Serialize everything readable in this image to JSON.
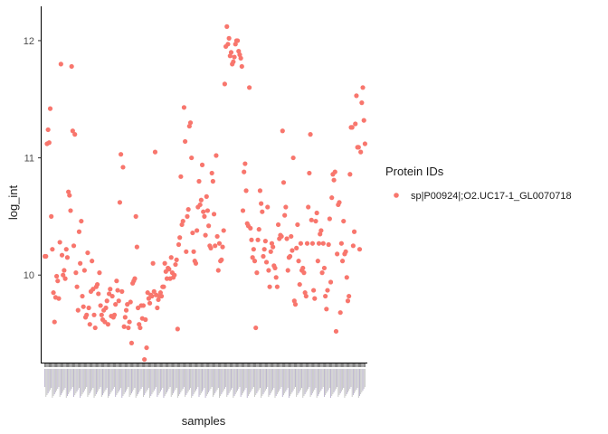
{
  "chart_data": {
    "type": "scatter",
    "xlabel": "samples",
    "ylabel": "log_int",
    "ylim": [
      9.4,
      12.15
    ],
    "yticks": [
      10,
      11,
      12
    ],
    "grid": false,
    "legend": {
      "title": "Protein IDs",
      "placement": "right"
    },
    "series": [
      {
        "name": "sp|P00924|;O2.UC17-1_GL0070718",
        "color": "#F8766D",
        "y": [
          10.16,
          10.16,
          11.12,
          11.24,
          11.13,
          11.42,
          10.5,
          10.22,
          9.85,
          9.6,
          9.81,
          9.99,
          9.95,
          9.8,
          10.28,
          11.8,
          10.17,
          10.0,
          10.04,
          9.97,
          10.22,
          10.15,
          10.71,
          10.68,
          10.55,
          11.78,
          11.23,
          10.25,
          11.2,
          10.02,
          9.9,
          9.7,
          10.37,
          10.1,
          10.46,
          9.82,
          9.73,
          10.04,
          9.64,
          9.66,
          10.19,
          9.72,
          9.58,
          9.86,
          10.12,
          9.88,
          9.66,
          9.55,
          9.9,
          9.92,
          9.84,
          10.02,
          9.74,
          9.66,
          9.62,
          9.7,
          9.6,
          9.72,
          9.78,
          9.58,
          9.84,
          9.88,
          9.65,
          9.82,
          9.64,
          9.66,
          9.75,
          9.95,
          9.87,
          9.78,
          10.62,
          11.03,
          9.86,
          10.92,
          9.56,
          9.64,
          9.7,
          9.75,
          9.55,
          9.6,
          9.77,
          9.42,
          9.93,
          9.95,
          9.97,
          10.5,
          10.24,
          9.72,
          9.58,
          9.55,
          9.74,
          9.63,
          9.74,
          9.28,
          9.62,
          9.38,
          9.85,
          9.8,
          9.76,
          9.83,
          9.82,
          10.1,
          9.86,
          11.05,
          9.83,
          9.72,
          9.79,
          9.82,
          9.85,
          9.82,
          9.9,
          9.9,
          10.1,
          10.03,
          9.97,
          10.06,
          10.05,
          9.97,
          10.15,
          10.02,
          9.98,
          10.0,
          10.09,
          10.13,
          9.54,
          10.26,
          10.32,
          10.84,
          10.43,
          10.46,
          11.43,
          11.14,
          10.2,
          10.5,
          10.56,
          11.27,
          11.3,
          11.0,
          10.36,
          10.2,
          10.12,
          10.1,
          10.38,
          10.58,
          10.8,
          10.6,
          10.64,
          10.94,
          10.54,
          10.5,
          10.34,
          10.67,
          10.55,
          10.42,
          10.25,
          10.23,
          10.87,
          10.8,
          10.52,
          10.25,
          11.02,
          10.33,
          10.04,
          10.27,
          10.12,
          10.13,
          10.24,
          10.38,
          11.63,
          11.95,
          12.12,
          11.97,
          12.02,
          11.87,
          11.9,
          11.8,
          11.82,
          11.86,
          11.97,
          12.0,
          12.0,
          11.91,
          11.88,
          11.85,
          11.78,
          10.55,
          10.88,
          10.95,
          10.72,
          10.44,
          10.42,
          11.6,
          10.4,
          10.3,
          10.15,
          10.22,
          10.12,
          9.55,
          10.02,
          10.3,
          10.39,
          10.72,
          10.61,
          10.54,
          10.16,
          10.22,
          10.29,
          10.11,
          10.58,
          10.04,
          9.9,
          10.2,
          10.27,
          10.24,
          10.08,
          10.06,
          9.98,
          9.9,
          10.43,
          10.31,
          10.34,
          10.33,
          11.23,
          10.79,
          10.51,
          10.58,
          10.31,
          10.04,
          10.15,
          10.16,
          10.33,
          10.21,
          11.0,
          9.78,
          9.75,
          10.23,
          10.43,
          10.12,
          9.92,
          10.27,
          10.04,
          10.06,
          10.02,
          9.85,
          9.82,
          10.27,
          10.58,
          10.87,
          11.2,
          10.47,
          10.27,
          9.87,
          9.8,
          10.46,
          10.53,
          10.12,
          10.27,
          10.35,
          10.38,
          10.02,
          10.27,
          10.06,
          9.82,
          9.71,
          9.87,
          10.26,
          10.48,
          9.94,
          10.66,
          10.86,
          10.81,
          10.88,
          9.52,
          10.18,
          10.6,
          10.62,
          9.68,
          10.27,
          10.12,
          10.46,
          10.18,
          10.2,
          9.98,
          9.78,
          9.82,
          10.86,
          11.26,
          11.26,
          10.25,
          10.37,
          11.29,
          11.53,
          11.09,
          11.09,
          10.22,
          11.05,
          11.47,
          11.6,
          11.32,
          11.12
        ]
      }
    ]
  }
}
